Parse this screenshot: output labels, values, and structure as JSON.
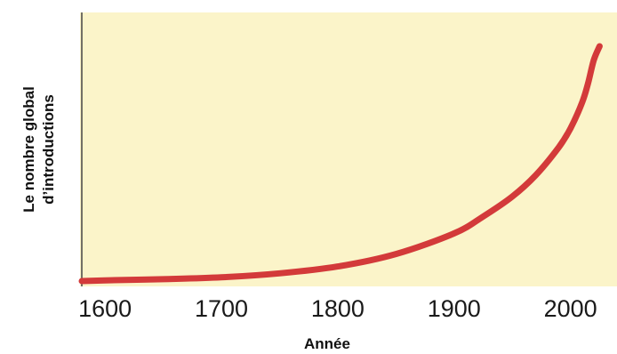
{
  "chart_data": {
    "type": "line",
    "title": "",
    "xlabel": "Année",
    "ylabel_lines": [
      "Le nombre global",
      "d’introductions"
    ],
    "x_ticks": [
      1600,
      1700,
      1800,
      1900,
      2000
    ],
    "xlim": [
      1580,
      2040
    ],
    "ylim": [
      0,
      100
    ],
    "y_ticks_shown": false,
    "grid": false,
    "legend": "none",
    "series": [
      {
        "x": [
          1580,
          1600,
          1650,
          1700,
          1750,
          1800,
          1850,
          1900,
          1925,
          1950,
          1970,
          1990,
          2000,
          2010,
          2015,
          2020,
          2025
        ],
        "y": [
          0,
          0.3,
          0.8,
          1.6,
          3.3,
          6.2,
          11.5,
          20.3,
          27.5,
          36,
          45,
          57,
          65,
          76,
          84,
          94,
          100
        ]
      }
    ],
    "colors": {
      "plot_background": "#fbf4c9",
      "line": "#d33a3a",
      "axis": "#444444"
    }
  }
}
